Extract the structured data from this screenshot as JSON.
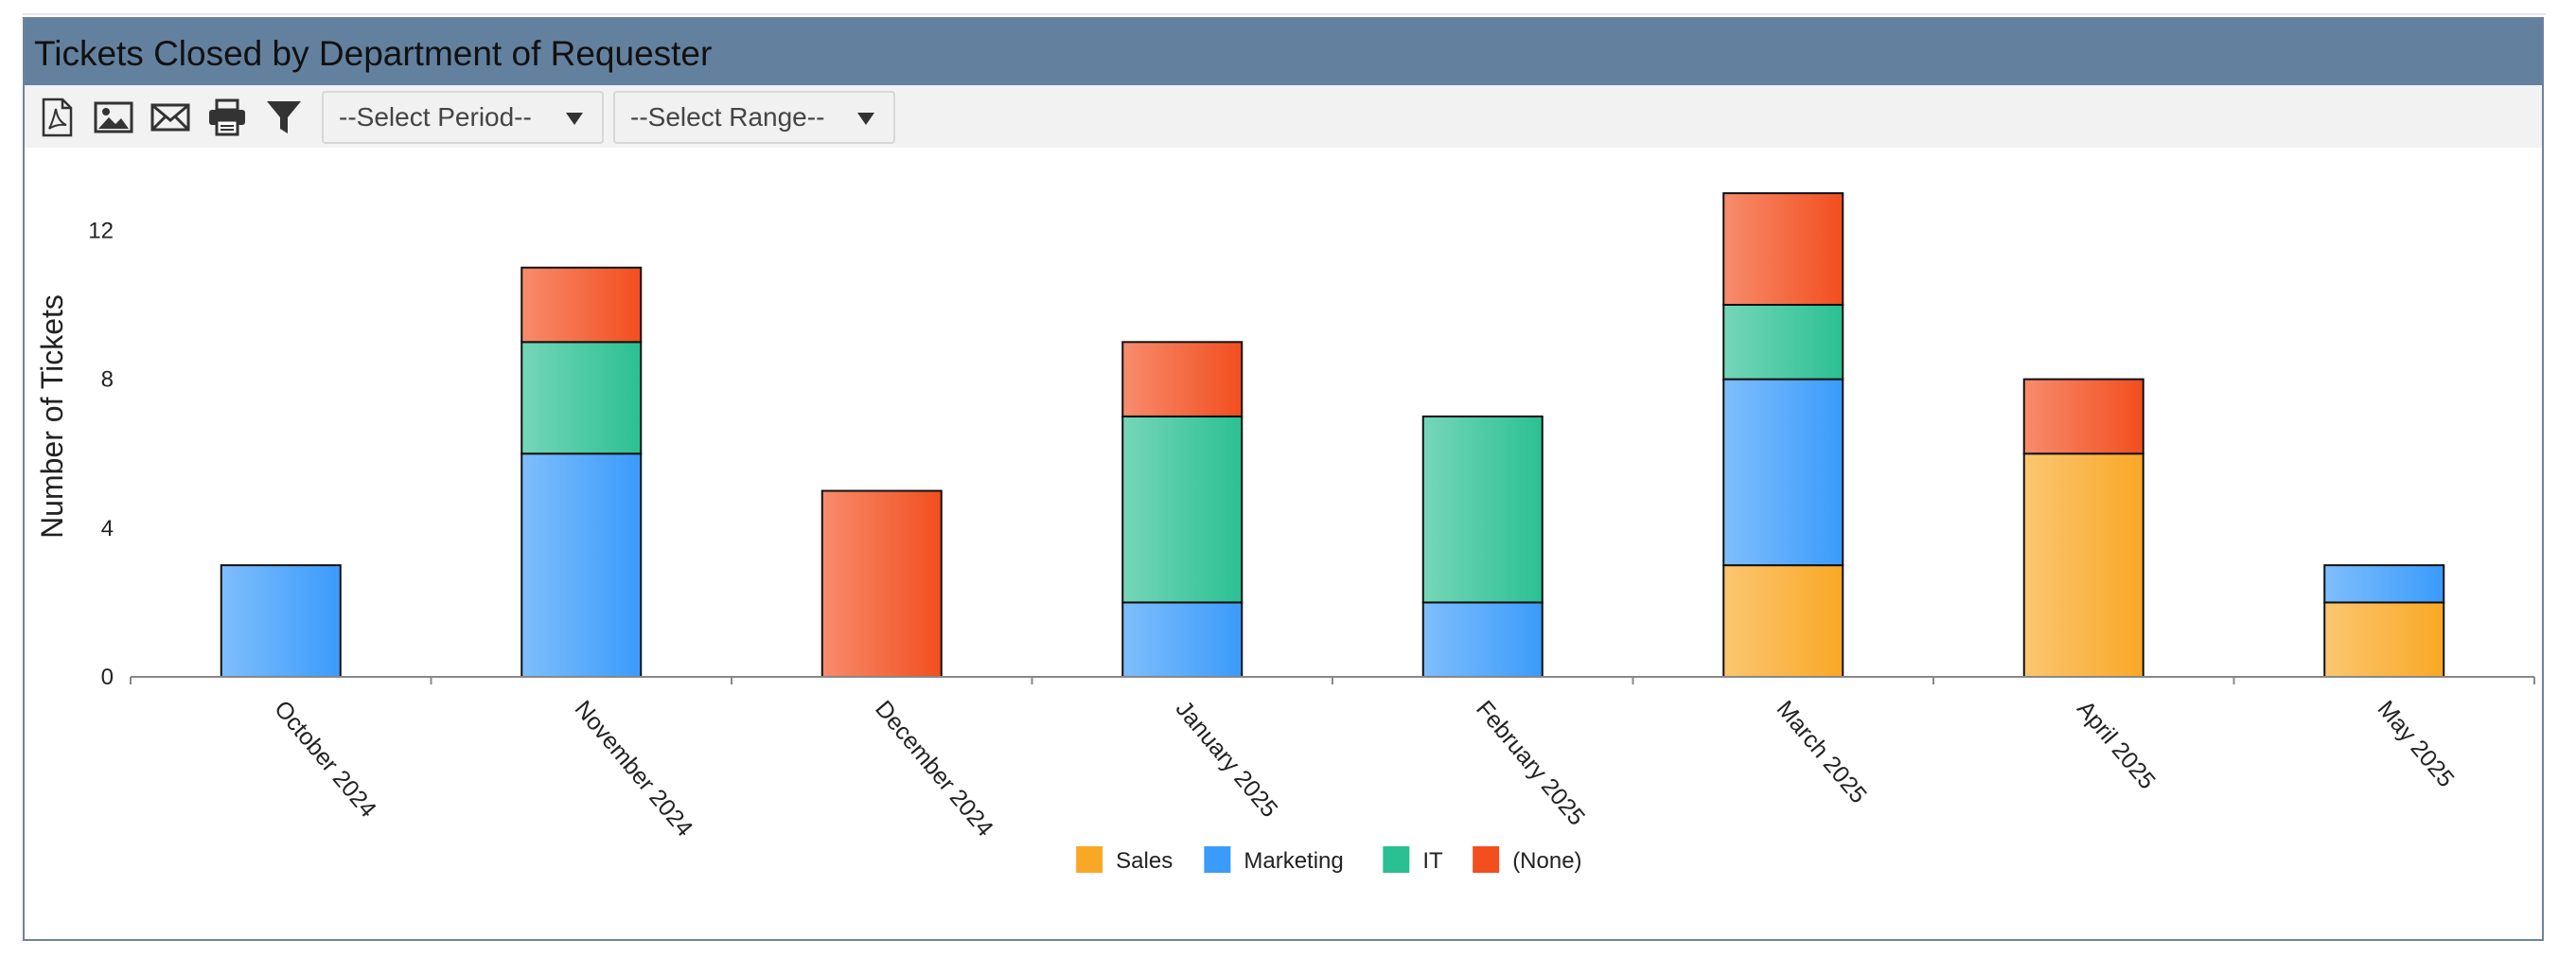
{
  "panel": {
    "title": "Tickets Closed by Department of Requester",
    "title_color": "#63819f"
  },
  "toolbar": {
    "icons": [
      "pdf-icon",
      "image-icon",
      "email-icon",
      "print-icon",
      "filter-icon"
    ],
    "period_select": "--Select Period--",
    "range_select": "--Select Range--"
  },
  "chart_data": {
    "type": "bar",
    "stacked": true,
    "title": "",
    "xlabel": "",
    "ylabel": "Number of Tickets",
    "categories": [
      "October 2024",
      "November 2024",
      "December 2024",
      "January 2025",
      "February 2025",
      "March 2025",
      "April 2025",
      "May 2025"
    ],
    "series": [
      {
        "name": "Sales",
        "color": "#f9a825",
        "values": [
          0,
          0,
          0,
          0,
          0,
          3,
          6,
          2
        ]
      },
      {
        "name": "Marketing",
        "color": "#3a9bfb",
        "values": [
          3,
          6,
          0,
          2,
          2,
          5,
          0,
          1
        ]
      },
      {
        "name": "IT",
        "color": "#2bc092",
        "values": [
          0,
          3,
          0,
          5,
          5,
          2,
          0,
          0
        ]
      },
      {
        "name": "(None)",
        "color": "#f24e1e",
        "values": [
          0,
          2,
          5,
          2,
          0,
          3,
          2,
          0
        ]
      }
    ],
    "yticks": [
      0,
      4,
      8,
      12
    ],
    "ylim": [
      0,
      13
    ],
    "legend_position": "bottom",
    "grid": false
  }
}
